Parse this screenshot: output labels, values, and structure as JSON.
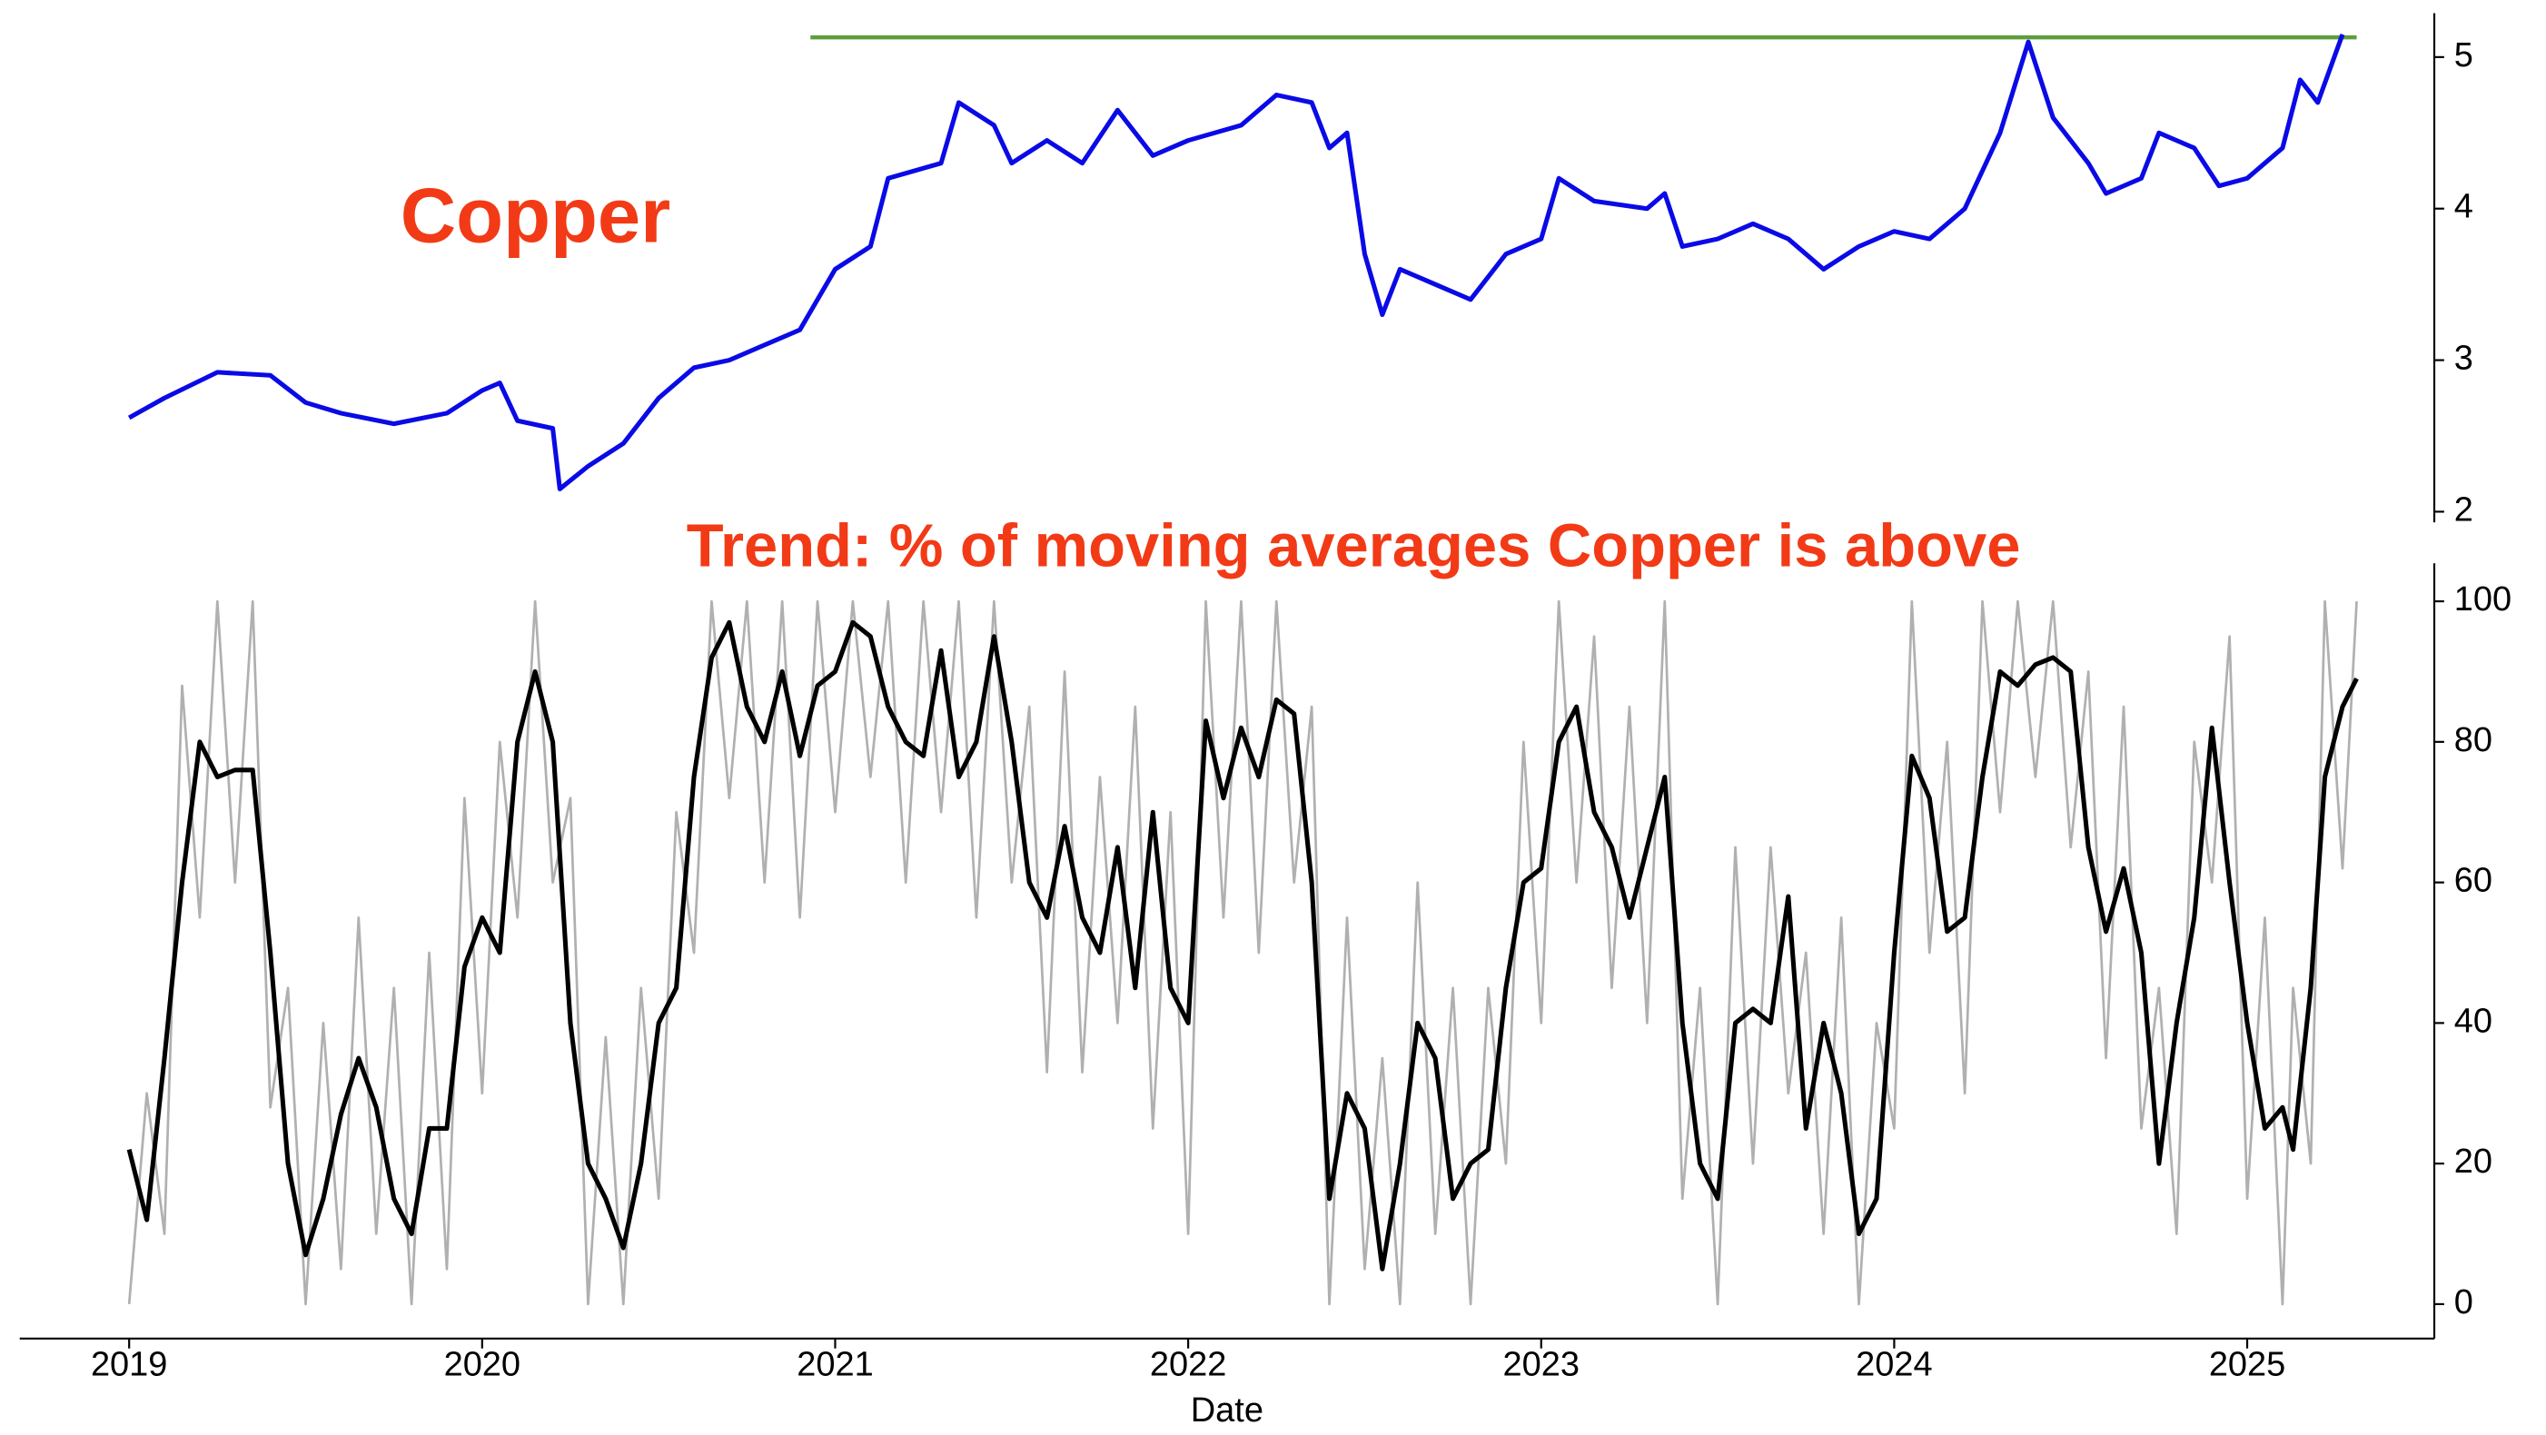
{
  "chart_data": [
    {
      "type": "line",
      "title": "Copper",
      "x": [
        2019.0,
        2019.1,
        2019.25,
        2019.4,
        2019.5,
        2019.6,
        2019.75,
        2019.9,
        2020.0,
        2020.05,
        2020.1,
        2020.2,
        2020.22,
        2020.3,
        2020.4,
        2020.5,
        2020.6,
        2020.7,
        2020.8,
        2020.9,
        2021.0,
        2021.1,
        2021.15,
        2021.3,
        2021.35,
        2021.45,
        2021.5,
        2021.6,
        2021.7,
        2021.8,
        2021.9,
        2022.0,
        2022.15,
        2022.25,
        2022.35,
        2022.4,
        2022.45,
        2022.5,
        2022.55,
        2022.6,
        2022.7,
        2022.8,
        2022.9,
        2023.0,
        2023.05,
        2023.15,
        2023.3,
        2023.35,
        2023.4,
        2023.5,
        2023.6,
        2023.7,
        2023.8,
        2023.9,
        2024.0,
        2024.1,
        2024.2,
        2024.3,
        2024.38,
        2024.45,
        2024.55,
        2024.6,
        2024.7,
        2024.75,
        2024.85,
        2024.92,
        2025.0,
        2025.1,
        2025.15,
        2025.2,
        2025.27
      ],
      "series": [
        {
          "color": "#0a0ae6",
          "values": [
            2.62,
            2.75,
            2.92,
            2.9,
            2.72,
            2.65,
            2.58,
            2.65,
            2.8,
            2.85,
            2.6,
            2.55,
            2.15,
            2.3,
            2.45,
            2.75,
            2.95,
            3.0,
            3.1,
            3.2,
            3.6,
            3.75,
            4.2,
            4.3,
            4.7,
            4.55,
            4.3,
            4.45,
            4.3,
            4.65,
            4.35,
            4.45,
            4.55,
            4.75,
            4.7,
            4.4,
            4.5,
            3.7,
            3.3,
            3.6,
            3.5,
            3.4,
            3.7,
            3.8,
            4.2,
            4.05,
            4.0,
            4.1,
            3.75,
            3.8,
            3.9,
            3.8,
            3.6,
            3.75,
            3.85,
            3.8,
            4.0,
            4.5,
            5.1,
            4.6,
            4.3,
            4.1,
            4.2,
            4.5,
            4.4,
            4.15,
            4.2,
            4.4,
            4.85,
            4.7,
            5.15
          ]
        }
      ],
      "reference_line": {
        "value": 5.13,
        "x": [
          2020.93,
          2025.31
        ],
        "color": "#5c9e3c"
      },
      "xlim": [
        2018.69,
        2025.53
      ],
      "ylim": [
        1.93,
        5.29
      ],
      "yticks": [
        2,
        3,
        4,
        5
      ]
    },
    {
      "type": "line",
      "title": "Trend: % of moving averages Copper is above",
      "x_label": "Date",
      "x": [
        2019.0,
        2019.05,
        2019.1,
        2019.15,
        2019.2,
        2019.25,
        2019.3,
        2019.35,
        2019.4,
        2019.45,
        2019.5,
        2019.55,
        2019.6,
        2019.65,
        2019.7,
        2019.75,
        2019.8,
        2019.85,
        2019.9,
        2019.95,
        2020.0,
        2020.05,
        2020.1,
        2020.15,
        2020.2,
        2020.25,
        2020.3,
        2020.35,
        2020.4,
        2020.45,
        2020.5,
        2020.55,
        2020.6,
        2020.65,
        2020.7,
        2020.75,
        2020.8,
        2020.85,
        2020.9,
        2020.95,
        2021.0,
        2021.05,
        2021.1,
        2021.15,
        2021.2,
        2021.25,
        2021.3,
        2021.35,
        2021.4,
        2021.45,
        2021.5,
        2021.55,
        2021.6,
        2021.65,
        2021.7,
        2021.75,
        2021.8,
        2021.85,
        2021.9,
        2021.95,
        2022.0,
        2022.05,
        2022.1,
        2022.15,
        2022.2,
        2022.25,
        2022.3,
        2022.35,
        2022.4,
        2022.45,
        2022.5,
        2022.55,
        2022.6,
        2022.65,
        2022.7,
        2022.75,
        2022.8,
        2022.85,
        2022.9,
        2022.95,
        2023.0,
        2023.05,
        2023.1,
        2023.15,
        2023.2,
        2023.25,
        2023.3,
        2023.35,
        2023.4,
        2023.45,
        2023.5,
        2023.55,
        2023.6,
        2023.65,
        2023.7,
        2023.75,
        2023.8,
        2023.85,
        2023.9,
        2023.95,
        2024.0,
        2024.05,
        2024.1,
        2024.15,
        2024.2,
        2024.25,
        2024.3,
        2024.35,
        2024.4,
        2024.45,
        2024.5,
        2024.55,
        2024.6,
        2024.65,
        2024.7,
        2024.75,
        2024.8,
        2024.85,
        2024.9,
        2024.95,
        2025.0,
        2025.05,
        2025.1,
        2025.13,
        2025.18,
        2025.22,
        2025.27,
        2025.31
      ],
      "series": [
        {
          "color": "#b0b0b0",
          "values": [
            0,
            30,
            10,
            88,
            55,
            100,
            60,
            100,
            28,
            45,
            0,
            40,
            5,
            55,
            10,
            45,
            0,
            50,
            5,
            72,
            30,
            80,
            55,
            100,
            60,
            72,
            0,
            38,
            0,
            45,
            15,
            70,
            50,
            100,
            72,
            100,
            60,
            100,
            55,
            100,
            70,
            100,
            75,
            100,
            60,
            100,
            70,
            100,
            55,
            100,
            60,
            85,
            33,
            90,
            33,
            75,
            40,
            85,
            25,
            70,
            10,
            100,
            55,
            100,
            50,
            100,
            60,
            85,
            0,
            55,
            5,
            35,
            0,
            60,
            10,
            45,
            0,
            45,
            20,
            80,
            40,
            100,
            60,
            95,
            45,
            85,
            40,
            100,
            15,
            45,
            0,
            65,
            20,
            65,
            30,
            50,
            10,
            55,
            0,
            40,
            25,
            100,
            50,
            80,
            30,
            100,
            70,
            100,
            75,
            100,
            65,
            90,
            35,
            85,
            25,
            45,
            10,
            80,
            60,
            95,
            15,
            55,
            0,
            45,
            20,
            100,
            62,
            100
          ]
        },
        {
          "color": "#000000",
          "values": [
            22,
            12,
            35,
            60,
            80,
            75,
            76,
            76,
            50,
            20,
            7,
            15,
            27,
            35,
            28,
            15,
            10,
            25,
            25,
            48,
            55,
            50,
            80,
            90,
            80,
            40,
            20,
            15,
            8,
            20,
            40,
            45,
            75,
            92,
            97,
            85,
            80,
            90,
            78,
            88,
            90,
            97,
            95,
            85,
            80,
            78,
            93,
            75,
            80,
            95,
            80,
            60,
            55,
            68,
            55,
            50,
            65,
            45,
            70,
            45,
            40,
            83,
            72,
            82,
            75,
            86,
            84,
            60,
            15,
            30,
            25,
            5,
            20,
            40,
            35,
            15,
            20,
            22,
            45,
            60,
            62,
            80,
            85,
            70,
            65,
            55,
            65,
            75,
            40,
            20,
            15,
            40,
            42,
            40,
            58,
            25,
            40,
            30,
            10,
            15,
            50,
            78,
            72,
            53,
            55,
            75,
            90,
            88,
            91,
            92,
            90,
            65,
            53,
            62,
            50,
            20,
            40,
            55,
            82,
            60,
            40,
            25,
            28,
            22,
            45,
            75,
            85,
            89
          ]
        }
      ],
      "xlim": [
        2018.69,
        2025.53
      ],
      "ylim": [
        -4.9,
        105.4
      ],
      "xticks": [
        2019,
        2020,
        2021,
        2022,
        2023,
        2024,
        2025
      ],
      "yticks": [
        0,
        20,
        40,
        60,
        80,
        100
      ]
    }
  ]
}
